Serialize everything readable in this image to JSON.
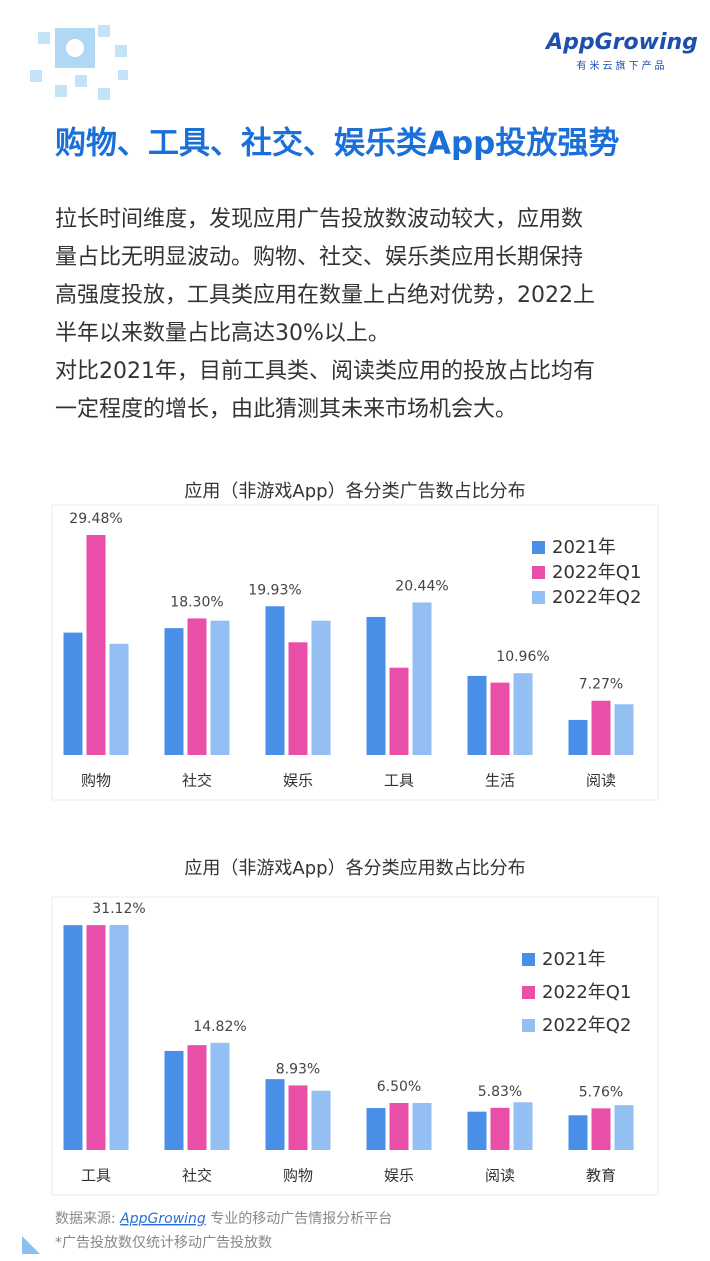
{
  "header": {
    "logo": "AppGrowing",
    "logo_sub": "有米云旗下产品",
    "title": "购物、工具、社交、娱乐类App投放强势"
  },
  "body": {
    "lines": [
      "拉长时间维度，发现应用广告投放数波动较大，应用数",
      "量占比无明显波动。购物、社交、娱乐类应用长期保持",
      "高强度投放，工具类应用在数量上占绝对优势，2022上",
      "半年以来数量占比高达30%以上。",
      "对比2021年，目前工具类、阅读类应用的投放占比均有",
      "一定程度的增长，由此猜测其未来市场机会大。"
    ]
  },
  "chart_data": [
    {
      "type": "bar",
      "title": "应用（非游戏App）各分类广告数占比分布",
      "categories": [
        "购物",
        "社交",
        "娱乐",
        "工具",
        "生活",
        "阅读"
      ],
      "legend": "top-right",
      "series": [
        {
          "name": "2021年",
          "color": "#4a8fe7",
          "values": [
            16.4,
            17.0,
            19.93,
            18.5,
            10.6,
            4.7
          ],
          "value_labels": [
            null,
            null,
            "19.93%",
            null,
            null,
            null
          ]
        },
        {
          "name": "2022年Q1",
          "color": "#e94ea8",
          "values": [
            29.48,
            18.3,
            15.1,
            11.7,
            9.7,
            7.27
          ],
          "value_labels": [
            "29.48%",
            "18.30%",
            null,
            null,
            null,
            "7.27%"
          ]
        },
        {
          "name": "2022年Q2",
          "color": "#93bff2",
          "values": [
            14.9,
            18.0,
            18.0,
            20.44,
            10.96,
            6.8
          ],
          "value_labels": [
            null,
            null,
            null,
            "20.44%",
            "10.96%",
            null
          ]
        }
      ]
    },
    {
      "type": "bar",
      "title": "应用（非游戏App）各分类应用数占比分布",
      "categories": [
        "工具",
        "社交",
        "购物",
        "娱乐",
        "阅读",
        "教育"
      ],
      "legend": "top-right",
      "series": [
        {
          "name": "2021年",
          "color": "#4a8fe7",
          "values": [
            31.1,
            13.7,
            9.8,
            5.8,
            5.3,
            4.8
          ],
          "value_labels": [
            null,
            null,
            null,
            null,
            null,
            null
          ]
        },
        {
          "name": "2022年Q1",
          "color": "#e94ea8",
          "values": [
            31.1,
            14.5,
            8.93,
            6.5,
            5.83,
            5.76
          ],
          "value_labels": [
            null,
            null,
            "8.93%",
            "6.50%",
            "5.83%",
            "5.76%"
          ]
        },
        {
          "name": "2022年Q2",
          "color": "#93bff2",
          "values": [
            31.12,
            14.82,
            8.2,
            6.5,
            6.6,
            6.2
          ],
          "value_labels": [
            "31.12%",
            "14.82%",
            null,
            null,
            null,
            null
          ]
        }
      ]
    }
  ],
  "footer": {
    "source_prefix": "数据来源: ",
    "source_link": "AppGrowing",
    "source_suffix": " 专业的移动广告情报分析平台",
    "note": "*广告投放数仅统计移动广告投放数"
  }
}
